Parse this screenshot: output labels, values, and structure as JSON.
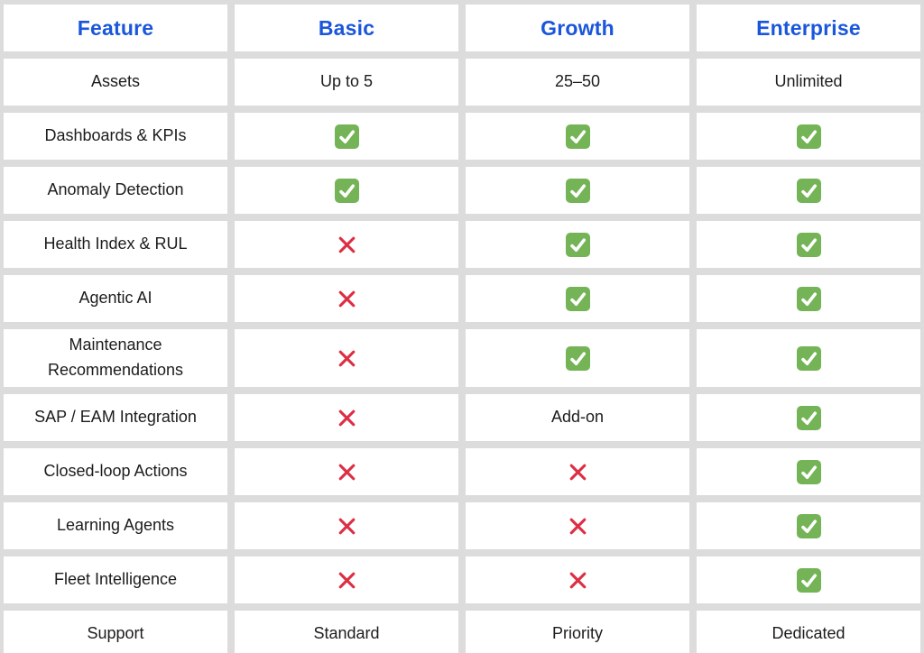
{
  "colors": {
    "header_blue": "#1a56db",
    "check_green": "#74b356",
    "cross_red": "#dd2e44",
    "background_gray": "#dcdcdc",
    "cell_white": "#ffffff",
    "body_text": "#1c1c1c"
  },
  "table": {
    "columns": [
      "Feature",
      "Basic",
      "Growth",
      "Enterprise"
    ],
    "rows": [
      {
        "feature": "Assets",
        "cells": [
          {
            "type": "text",
            "value": "Up to 5"
          },
          {
            "type": "text",
            "value": "25–50"
          },
          {
            "type": "text",
            "value": "Unlimited"
          }
        ]
      },
      {
        "feature": "Dashboards & KPIs",
        "cells": [
          {
            "type": "check"
          },
          {
            "type": "check"
          },
          {
            "type": "check"
          }
        ]
      },
      {
        "feature": "Anomaly Detection",
        "cells": [
          {
            "type": "check"
          },
          {
            "type": "check"
          },
          {
            "type": "check"
          }
        ]
      },
      {
        "feature": "Health Index & RUL",
        "cells": [
          {
            "type": "cross"
          },
          {
            "type": "check"
          },
          {
            "type": "check"
          }
        ]
      },
      {
        "feature": "Agentic AI",
        "cells": [
          {
            "type": "cross"
          },
          {
            "type": "check"
          },
          {
            "type": "check"
          }
        ]
      },
      {
        "feature": "Maintenance Recommendations",
        "cells": [
          {
            "type": "cross"
          },
          {
            "type": "check"
          },
          {
            "type": "check"
          }
        ]
      },
      {
        "feature": "SAP / EAM Integration",
        "cells": [
          {
            "type": "cross"
          },
          {
            "type": "text",
            "value": "Add-on"
          },
          {
            "type": "check"
          }
        ]
      },
      {
        "feature": "Closed-loop Actions",
        "cells": [
          {
            "type": "cross"
          },
          {
            "type": "cross"
          },
          {
            "type": "check"
          }
        ]
      },
      {
        "feature": "Learning Agents",
        "cells": [
          {
            "type": "cross"
          },
          {
            "type": "cross"
          },
          {
            "type": "check"
          }
        ]
      },
      {
        "feature": "Fleet Intelligence",
        "cells": [
          {
            "type": "cross"
          },
          {
            "type": "cross"
          },
          {
            "type": "check"
          }
        ]
      },
      {
        "feature": "Support",
        "cells": [
          {
            "type": "text",
            "value": "Standard"
          },
          {
            "type": "text",
            "value": "Priority"
          },
          {
            "type": "text",
            "value": "Dedicated"
          }
        ]
      }
    ],
    "icon_legend": {
      "check": "included",
      "cross": "not-included"
    }
  }
}
